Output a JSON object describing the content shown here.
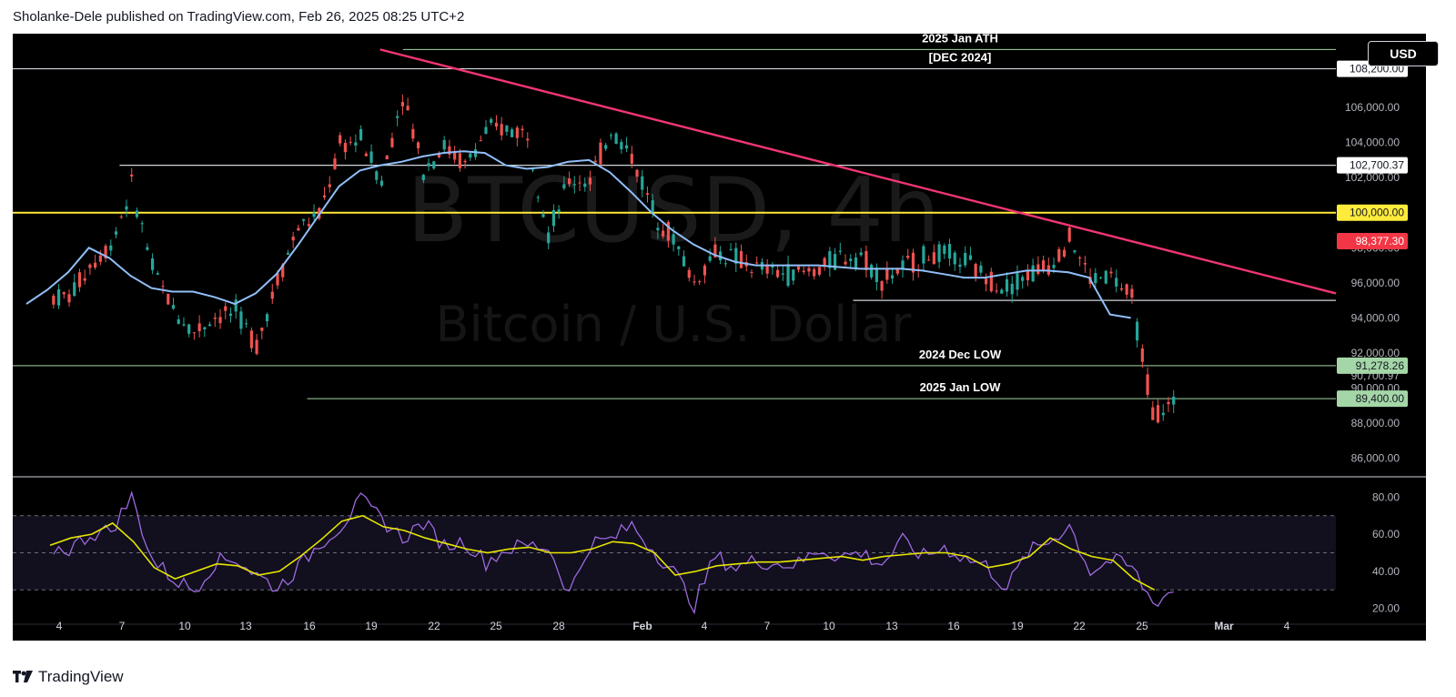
{
  "header": {
    "published": "Sholanke-Dele published on TradingView.com, Feb 26, 2025 08:25 UTC+2"
  },
  "footer": {
    "brand": "TradingView"
  },
  "currency_button": "USD",
  "watermark": {
    "symbol": "BTCUSD, 4h",
    "name": "Bitcoin / U.S. Dollar"
  },
  "colors": {
    "background": "#000000",
    "up_candle": "#26a69a",
    "down_candle": "#ef5350",
    "ma_line": "#90bff9",
    "trendline": "#f23672",
    "level_100k": "#ffeb3b",
    "green_level": "#a5d6a7",
    "rsi_line": "#9c6ade",
    "rsi_ma": "#e6e600"
  },
  "chart_data": [
    {
      "type": "candlestick",
      "title": "",
      "ylim": [
        85000,
        110200
      ],
      "y_ticks": [
        "86,000.00",
        "88,000.00",
        "90,000.00",
        "92,000.00",
        "94,000.00",
        "96,000.00",
        "98,000.00",
        "100,000.00",
        "102,000.00",
        "104,000.00",
        "106,000.00",
        "108,200.00"
      ],
      "x_ticks": [
        "4",
        "7",
        "10",
        "13",
        "16",
        "19",
        "22",
        "25",
        "28",
        "Feb",
        "4",
        "7",
        "10",
        "13",
        "16",
        "19",
        "22",
        "25",
        "Mar",
        "4"
      ],
      "price_series": [
        [
          "Jan 4",
          95200
        ],
        [
          "Jan 5",
          97000
        ],
        [
          "Jan 6",
          98200
        ],
        [
          "Jan 7",
          101500
        ],
        [
          "Jan 8",
          96800
        ],
        [
          "Jan 9",
          94500
        ],
        [
          "Jan 10",
          93200
        ],
        [
          "Jan 11",
          94100
        ],
        [
          "Jan 12",
          94300
        ],
        [
          "Jan 13",
          92500
        ],
        [
          "Jan 14",
          96200
        ],
        [
          "Jan 15",
          99200
        ],
        [
          "Jan 16",
          99800
        ],
        [
          "Jan 17",
          103800
        ],
        [
          "Jan 18",
          104200
        ],
        [
          "Jan 19",
          101800
        ],
        [
          "Jan 20",
          106800
        ],
        [
          "Jan 21",
          102500
        ],
        [
          "Jan 22",
          103800
        ],
        [
          "Jan 23",
          102700
        ],
        [
          "Jan 24",
          104600
        ],
        [
          "Jan 25",
          104800
        ],
        [
          "Jan 26",
          104500
        ],
        [
          "Jan 27",
          98800
        ],
        [
          "Jan 28",
          101800
        ],
        [
          "Jan 29",
          101900
        ],
        [
          "Jan 30",
          104700
        ],
        [
          "Jan 31",
          103200
        ],
        [
          "Feb 1",
          100200
        ],
        [
          "Feb 2",
          98500
        ],
        [
          "Feb 3",
          96000
        ],
        [
          "Feb 4",
          97800
        ],
        [
          "Feb 5",
          97400
        ],
        [
          "Feb 6",
          96800
        ],
        [
          "Feb 7",
          96600
        ],
        [
          "Feb 8",
          96500
        ],
        [
          "Feb 9",
          96800
        ],
        [
          "Feb 10",
          97500
        ],
        [
          "Feb 11",
          97600
        ],
        [
          "Feb 12",
          96200
        ],
        [
          "Feb 13",
          96800
        ],
        [
          "Feb 14",
          97500
        ],
        [
          "Feb 15",
          97600
        ],
        [
          "Feb 16",
          97200
        ],
        [
          "Feb 17",
          96300
        ],
        [
          "Feb 18",
          95800
        ],
        [
          "Feb 19",
          96500
        ],
        [
          "Feb 20",
          97000
        ],
        [
          "Feb 21",
          98600
        ],
        [
          "Feb 22",
          96200
        ],
        [
          "Feb 23",
          96400
        ],
        [
          "Feb 24",
          95000
        ],
        [
          "Feb 25",
          88600
        ],
        [
          "Feb 26",
          89000
        ]
      ],
      "ma_series": [
        94800,
        95600,
        96600,
        98000,
        97400,
        96400,
        95700,
        95500,
        95500,
        95200,
        94800,
        95400,
        96500,
        98100,
        99800,
        101500,
        102400,
        102700,
        102900,
        103200,
        103400,
        103500,
        103400,
        102700,
        102500,
        102600,
        102900,
        103000,
        102300,
        101200,
        100000,
        99000,
        98200,
        97600,
        97200,
        97000,
        97000,
        97000,
        97000,
        96900,
        96800,
        96800,
        96800,
        96700,
        96500,
        96300,
        96300,
        96500,
        96700,
        96700,
        96600,
        96300,
        94200,
        94000
      ],
      "levels": [
        {
          "label": "2025 Jan ATH",
          "value": 109300,
          "tag": ""
        },
        {
          "label": "[DEC 2024]",
          "value": 108200,
          "tag": "108,200.00"
        },
        {
          "label": "",
          "value": 102700.37,
          "tag": "102,700.37"
        },
        {
          "label": "",
          "value": 100000,
          "tag": "100,000.00"
        },
        {
          "label": "",
          "value": 95000,
          "tag": ""
        },
        {
          "label": "2024 Dec LOW",
          "value": 91278.26,
          "tag": "91,278.26"
        },
        {
          "label": "2025 Jan LOW",
          "value": 89400,
          "tag": "89,400.00"
        }
      ],
      "current_price_tag": "98,377.30",
      "hidden_tags": [
        "90,700.97"
      ],
      "trendline": {
        "from": [
          "Jan 20",
          109300
        ],
        "to": [
          "Mar 5",
          95400
        ]
      }
    },
    {
      "type": "line",
      "title": "",
      "ylim": [
        12,
        88
      ],
      "y_ticks": [
        "20.00",
        "40.00",
        "60.00",
        "80.00"
      ],
      "bands": [
        30,
        50,
        70
      ],
      "rsi": [
        52,
        60,
        62,
        80,
        46,
        36,
        30,
        45,
        47,
        38,
        31,
        42,
        55,
        64,
        78,
        68,
        58,
        66,
        54,
        56,
        45,
        52,
        54,
        53,
        28,
        55,
        57,
        65,
        52,
        40,
        22,
        48,
        42,
        46,
        44,
        44,
        52,
        48,
        50,
        44,
        56,
        48,
        53,
        47,
        43,
        31,
        50,
        56,
        65,
        40,
        46,
        42,
        23,
        30
      ],
      "rsi_ma": [
        54,
        58,
        60,
        66,
        56,
        42,
        36,
        40,
        44,
        43,
        38,
        40,
        48,
        57,
        67,
        70,
        64,
        62,
        58,
        55,
        52,
        50,
        52,
        53,
        50,
        50,
        52,
        56,
        55,
        50,
        38,
        40,
        43,
        44,
        45,
        45,
        46,
        47,
        48,
        46,
        48,
        49,
        50,
        50,
        48,
        42,
        44,
        48,
        58,
        52,
        48,
        46,
        36,
        30
      ]
    }
  ]
}
